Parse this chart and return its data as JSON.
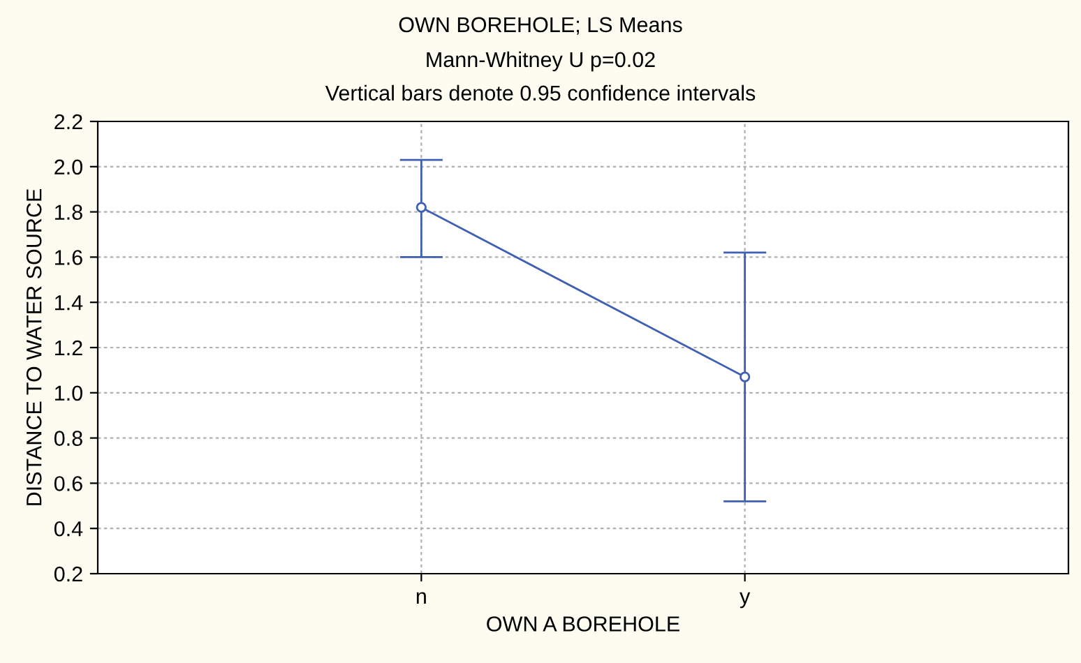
{
  "chart_data": {
    "type": "line",
    "title": "OWN BOREHOLE; LS Means",
    "subtitle": "Mann-Whitney U p=0.02\nVertical bars denote 0.95 confidence intervals",
    "xlabel": "OWN A BOREHOLE",
    "ylabel": "DISTANCE TO WATER SOURCE",
    "categories": [
      "n",
      "y"
    ],
    "series": [
      {
        "color": "#3f5fb5",
        "values": [
          1.82,
          1.07
        ],
        "errors": [
          [
            1.6,
            2.03
          ],
          [
            0.52,
            1.62
          ]
        ]
      }
    ],
    "ylim": [
      0.2,
      2.2
    ],
    "yticks": [
      0.2,
      0.4,
      0.6,
      0.8,
      {
        "value": 1,
        "label": "1.0"
      },
      1.2,
      1.4,
      1.6,
      1.8,
      {
        "value": 2,
        "label": "2.0"
      },
      2.2
    ],
    "grid": true,
    "marker": "circle",
    "line_style": "solid"
  }
}
